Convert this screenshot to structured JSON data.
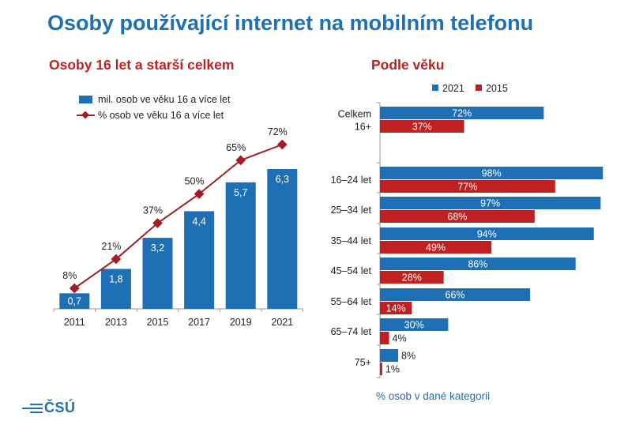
{
  "title": "Osoby používající internet na mobilním telefonu",
  "footnote": "% osob v dané kategorii",
  "logo_text": "ČSÚ",
  "colors": {
    "blue": "#1f6fb4",
    "red": "#c0201f",
    "line": "#a61c24"
  },
  "chart_data": [
    {
      "type": "bar+line",
      "title": "Osoby 16 let a starší celkem",
      "categories": [
        "2011",
        "2013",
        "2015",
        "2017",
        "2019",
        "2021"
      ],
      "series": [
        {
          "name": "mil. osob ve věku 16 a více let",
          "type": "bar",
          "values": [
            0.7,
            1.8,
            3.2,
            4.4,
            5.7,
            6.3
          ],
          "labels": [
            "0,7",
            "1,8",
            "3,2",
            "4,4",
            "5,7",
            "6,3"
          ]
        },
        {
          "name": "% osob ve věku 16 a více let",
          "type": "line",
          "values": [
            8,
            21,
            37,
            50,
            65,
            72
          ],
          "labels": [
            "8%",
            "21%",
            "37%",
            "50%",
            "65%",
            "72%"
          ]
        }
      ],
      "legend": "top-left"
    },
    {
      "type": "bar",
      "orientation": "horizontal",
      "title": "Podle věku",
      "categories": [
        "Celkem 16+",
        "16–24 let",
        "25–34 let",
        "35–44 let",
        "45–54 let",
        "55–64 let",
        "65–74 let",
        "75+"
      ],
      "category_lines": [
        [
          "Celkem",
          "16+"
        ],
        [
          "16–24 let"
        ],
        [
          "25–34 let"
        ],
        [
          "35–44 let"
        ],
        [
          "45–54 let"
        ],
        [
          "55–64 let"
        ],
        [
          "65–74 let"
        ],
        [
          "75+"
        ]
      ],
      "series": [
        {
          "name": "2021",
          "values": [
            72,
            98,
            97,
            94,
            86,
            66,
            30,
            8
          ],
          "labels": [
            "72%",
            "98%",
            "97%",
            "94%",
            "86%",
            "66%",
            "30%",
            "8%"
          ]
        },
        {
          "name": "2015",
          "values": [
            37,
            77,
            68,
            49,
            28,
            14,
            4,
            1
          ],
          "labels": [
            "37%",
            "77%",
            "68%",
            "49%",
            "28%",
            "14%",
            "4%",
            "1%"
          ]
        }
      ],
      "xlim": [
        0,
        100
      ],
      "legend": "top"
    }
  ]
}
